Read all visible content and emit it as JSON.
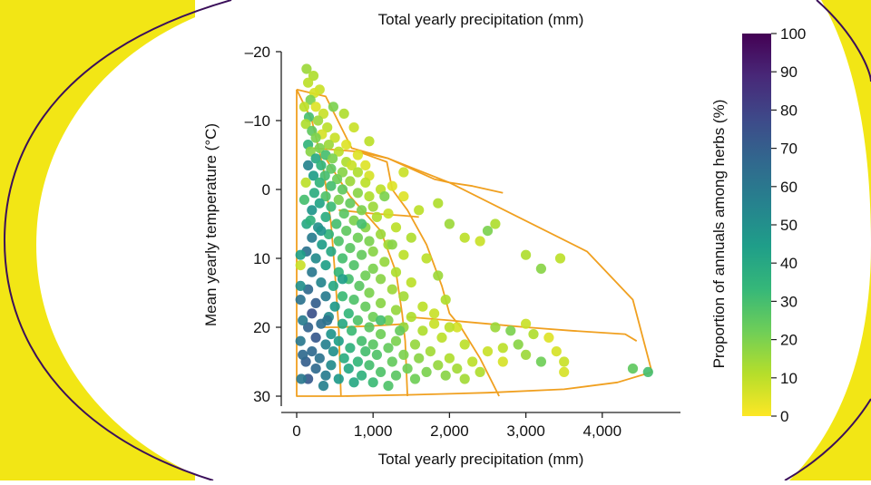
{
  "colors": {
    "decor_yellow": "#f2e615",
    "decor_arc": "#3b0f5a",
    "biome_outline": "#f0a020",
    "axis": "#222222",
    "viridis_stops": [
      "#fde725",
      "#b5de2b",
      "#6ece58",
      "#35b779",
      "#1f9e89",
      "#26828e",
      "#31688e",
      "#3e4989",
      "#482878",
      "#440154"
    ]
  },
  "chart_data": {
    "type": "scatter",
    "title": "Total yearly precipitation (mm)",
    "xlabel": "Total yearly precipitation (mm)",
    "ylabel": "Mean yearly temperature (°C)",
    "xlim": [
      -300,
      5000
    ],
    "ylim": [
      -22,
      31
    ],
    "y_inverted": true,
    "x_ticks": [
      0,
      1000,
      2000,
      3000,
      4000
    ],
    "x_tick_labels": [
      "0",
      "1,000",
      "2,000",
      "3,000",
      "4,000"
    ],
    "y_ticks": [
      -20,
      -10,
      0,
      10,
      20,
      30
    ],
    "y_tick_labels": [
      "–20",
      "–10",
      "0",
      "10",
      "20",
      "30"
    ],
    "colorbar": {
      "label": "Proportion of annuals among herbs (%)",
      "range": [
        0,
        100
      ],
      "ticks": [
        0,
        10,
        20,
        30,
        40,
        50,
        60,
        70,
        80,
        90,
        100
      ],
      "tick_labels": [
        "0",
        "10",
        "20",
        "30",
        "40",
        "50",
        "60",
        "70",
        "80",
        "90",
        "100"
      ]
    },
    "biome_boundaries": [
      [
        [
          0,
          -14.5
        ],
        [
          380,
          -13.5
        ],
        [
          720,
          -6
        ],
        [
          1200,
          -4.5
        ],
        [
          2000,
          -1
        ],
        [
          2900,
          4
        ],
        [
          3800,
          9
        ],
        [
          4400,
          16
        ],
        [
          4650,
          26.5
        ],
        [
          4200,
          28
        ],
        [
          3500,
          29
        ],
        [
          2500,
          29.5
        ],
        [
          1500,
          29.8
        ],
        [
          600,
          30
        ],
        [
          0,
          30
        ],
        [
          0,
          -14.5
        ]
      ],
      [
        [
          0,
          -14.5
        ],
        [
          200,
          -10
        ],
        [
          350,
          -3
        ],
        [
          450,
          5
        ],
        [
          500,
          12
        ],
        [
          550,
          20
        ],
        [
          580,
          30
        ]
      ],
      [
        [
          220,
          -6
        ],
        [
          800,
          -5.5
        ],
        [
          1200,
          -4.5
        ],
        [
          1800,
          -1.5
        ],
        [
          2000,
          -1
        ],
        [
          2300,
          -0.5
        ],
        [
          2700,
          0.5
        ]
      ],
      [
        [
          380,
          -4.5
        ],
        [
          700,
          1
        ],
        [
          1100,
          6
        ],
        [
          1300,
          12
        ],
        [
          1380,
          18
        ],
        [
          1420,
          22
        ],
        [
          1450,
          30
        ]
      ],
      [
        [
          800,
          -5.5
        ],
        [
          1180,
          -4
        ],
        [
          1250,
          0
        ],
        [
          1450,
          3
        ],
        [
          1700,
          8
        ],
        [
          1900,
          14
        ],
        [
          2000,
          18
        ],
        [
          2150,
          20
        ],
        [
          2400,
          24.5
        ],
        [
          2650,
          30
        ]
      ],
      [
        [
          550,
          3
        ],
        [
          1000,
          3.5
        ],
        [
          1400,
          3.8
        ],
        [
          1600,
          4
        ]
      ],
      [
        [
          1450,
          18.5
        ],
        [
          2000,
          19
        ],
        [
          2500,
          19.5
        ],
        [
          3000,
          20
        ],
        [
          3600,
          20.5
        ],
        [
          4300,
          21
        ],
        [
          4450,
          22
        ]
      ],
      [
        [
          350,
          20
        ],
        [
          550,
          20
        ],
        [
          1000,
          19.8
        ],
        [
          1450,
          19.5
        ]
      ]
    ],
    "points_note_unused": "",
    "points": [
      [
        130,
        -17.5,
        15
      ],
      [
        220,
        -16.5,
        12
      ],
      [
        150,
        -15.5,
        10
      ],
      [
        300,
        -14.5,
        8
      ],
      [
        230,
        -14,
        6
      ],
      [
        180,
        -13,
        20
      ],
      [
        100,
        -12,
        10
      ],
      [
        250,
        -12,
        5
      ],
      [
        350,
        -11,
        8
      ],
      [
        160,
        -10.5,
        30
      ],
      [
        280,
        -10,
        15
      ],
      [
        120,
        -9.5,
        12
      ],
      [
        400,
        -9,
        10
      ],
      [
        200,
        -8.5,
        25
      ],
      [
        330,
        -8,
        6
      ],
      [
        250,
        -7.5,
        20
      ],
      [
        500,
        -7.5,
        8
      ],
      [
        150,
        -6.5,
        35
      ],
      [
        420,
        -6.5,
        15
      ],
      [
        650,
        -6.5,
        5
      ],
      [
        300,
        -6,
        20
      ],
      [
        180,
        -5.5,
        18
      ],
      [
        550,
        -5.5,
        10
      ],
      [
        380,
        -5,
        30
      ],
      [
        800,
        -5,
        5
      ],
      [
        250,
        -4.5,
        40
      ],
      [
        470,
        -4.5,
        20
      ],
      [
        650,
        -4,
        12
      ],
      [
        150,
        -3.5,
        55
      ],
      [
        320,
        -3.5,
        35
      ],
      [
        720,
        -3.5,
        8
      ],
      [
        900,
        -3.5,
        5
      ],
      [
        450,
        -3,
        25
      ],
      [
        600,
        -2.5,
        18
      ],
      [
        800,
        -2.5,
        12
      ],
      [
        220,
        -2,
        45
      ],
      [
        370,
        -2,
        30
      ],
      [
        950,
        -2,
        6
      ],
      [
        530,
        -1.5,
        22
      ],
      [
        700,
        -1.2,
        15
      ],
      [
        120,
        -1,
        10
      ],
      [
        300,
        -1,
        35
      ],
      [
        900,
        -1,
        10
      ],
      [
        1250,
        -0.5,
        5
      ],
      [
        450,
        -0.5,
        30
      ],
      [
        1100,
        0,
        10
      ],
      [
        600,
        0,
        25
      ],
      [
        230,
        0.5,
        38
      ],
      [
        800,
        0.5,
        18
      ],
      [
        380,
        1,
        28
      ],
      [
        950,
        1,
        12
      ],
      [
        1400,
        1,
        5
      ],
      [
        100,
        1.5,
        30
      ],
      [
        550,
        1.5,
        20
      ],
      [
        700,
        2,
        24
      ],
      [
        300,
        2,
        42
      ],
      [
        1000,
        2.5,
        15
      ],
      [
        450,
        2.5,
        32
      ],
      [
        850,
        3,
        20
      ],
      [
        200,
        3,
        48
      ],
      [
        1200,
        3.5,
        8
      ],
      [
        620,
        3.5,
        26
      ],
      [
        380,
        4,
        38
      ],
      [
        1050,
        4,
        12
      ],
      [
        750,
        4.5,
        20
      ],
      [
        130,
        5,
        40
      ],
      [
        520,
        5,
        30
      ],
      [
        900,
        5.5,
        18
      ],
      [
        280,
        5.5,
        50
      ],
      [
        1300,
        5.5,
        10
      ],
      [
        650,
        6,
        25
      ],
      [
        1100,
        6.5,
        15
      ],
      [
        420,
        6.5,
        35
      ],
      [
        800,
        7,
        22
      ],
      [
        200,
        7,
        58
      ],
      [
        1500,
        7,
        12
      ],
      [
        950,
        7.5,
        20
      ],
      [
        550,
        7.5,
        28
      ],
      [
        330,
        8,
        45
      ],
      [
        1200,
        8,
        14
      ],
      [
        700,
        8.5,
        26
      ],
      [
        130,
        9,
        62
      ],
      [
        1000,
        9,
        18
      ],
      [
        450,
        9,
        40
      ],
      [
        1400,
        9.5,
        10
      ],
      [
        850,
        9.5,
        24
      ],
      [
        600,
        10,
        30
      ],
      [
        250,
        10,
        52
      ],
      [
        1150,
        10.5,
        16
      ],
      [
        750,
        11,
        28
      ],
      [
        380,
        11,
        44
      ],
      [
        1000,
        11.5,
        20
      ],
      [
        50,
        11,
        8
      ],
      [
        550,
        12,
        34
      ],
      [
        1300,
        12,
        12
      ],
      [
        200,
        12,
        60
      ],
      [
        900,
        12.5,
        22
      ],
      [
        680,
        13,
        30
      ],
      [
        1100,
        13,
        18
      ],
      [
        320,
        13.5,
        54
      ],
      [
        1500,
        13.5,
        10
      ],
      [
        820,
        14,
        26
      ],
      [
        480,
        14,
        40
      ],
      [
        1250,
        14.5,
        15
      ],
      [
        150,
        14.5,
        66
      ],
      [
        950,
        15,
        20
      ],
      [
        600,
        15.5,
        32
      ],
      [
        380,
        15.5,
        58
      ],
      [
        1400,
        15.5,
        14
      ],
      [
        50,
        16,
        62
      ],
      [
        750,
        16,
        28
      ],
      [
        1100,
        16.5,
        18
      ],
      [
        250,
        16.5,
        70
      ],
      [
        900,
        17,
        24
      ],
      [
        500,
        17,
        46
      ],
      [
        1650,
        17,
        10
      ],
      [
        1300,
        17.5,
        16
      ],
      [
        680,
        18,
        34
      ],
      [
        200,
        18,
        75
      ],
      [
        1000,
        18.5,
        22
      ],
      [
        420,
        18.5,
        52
      ],
      [
        1500,
        18.5,
        12
      ],
      [
        800,
        19,
        28
      ],
      [
        1200,
        19,
        20
      ],
      [
        320,
        19.5,
        64
      ],
      [
        600,
        19.5,
        40
      ],
      [
        1800,
        19.5,
        8
      ],
      [
        950,
        20,
        26
      ],
      [
        150,
        20,
        68
      ],
      [
        1400,
        20,
        16
      ],
      [
        720,
        20.5,
        32
      ],
      [
        450,
        21,
        48
      ],
      [
        1100,
        21,
        22
      ],
      [
        2100,
        20,
        6
      ],
      [
        1650,
        20.5,
        12
      ],
      [
        250,
        21.5,
        72
      ],
      [
        850,
        22,
        30
      ],
      [
        1300,
        22,
        20
      ],
      [
        550,
        22,
        44
      ],
      [
        1900,
        21.5,
        10
      ],
      [
        1000,
        22.5,
        26
      ],
      [
        50,
        22,
        60
      ],
      [
        380,
        22.5,
        56
      ],
      [
        1550,
        22.5,
        16
      ],
      [
        700,
        23,
        36
      ],
      [
        2200,
        22.5,
        10
      ],
      [
        1200,
        23,
        24
      ],
      [
        200,
        23.5,
        66
      ],
      [
        900,
        23.5,
        30
      ],
      [
        1750,
        23.5,
        14
      ],
      [
        480,
        23.5,
        50
      ],
      [
        1400,
        24,
        20
      ],
      [
        2500,
        23.5,
        8
      ],
      [
        1050,
        24,
        28
      ],
      [
        620,
        24.5,
        38
      ],
      [
        300,
        24.5,
        62
      ],
      [
        2000,
        24.5,
        12
      ],
      [
        1600,
        24.5,
        18
      ],
      [
        800,
        25,
        34
      ],
      [
        1250,
        25,
        24
      ],
      [
        120,
        25,
        70
      ],
      [
        2300,
        25,
        10
      ],
      [
        450,
        25.5,
        52
      ],
      [
        1850,
        25.5,
        16
      ],
      [
        950,
        25.5,
        30
      ],
      [
        2700,
        25,
        6
      ],
      [
        1450,
        26,
        22
      ],
      [
        680,
        26,
        40
      ],
      [
        250,
        26,
        66
      ],
      [
        2100,
        26,
        14
      ],
      [
        1100,
        26.5,
        28
      ],
      [
        1700,
        26.5,
        20
      ],
      [
        380,
        27,
        58
      ],
      [
        850,
        27,
        36
      ],
      [
        2400,
        26.5,
        12
      ],
      [
        1300,
        27,
        26
      ],
      [
        550,
        27.5,
        46
      ],
      [
        1950,
        27,
        18
      ],
      [
        150,
        27.5,
        72
      ],
      [
        1000,
        28,
        32
      ],
      [
        750,
        28,
        40
      ],
      [
        1550,
        27.5,
        22
      ],
      [
        2200,
        27.5,
        14
      ],
      [
        350,
        28.5,
        56
      ],
      [
        1200,
        28.5,
        28
      ],
      [
        2000,
        20,
        10
      ],
      [
        2600,
        20,
        15
      ],
      [
        3000,
        19.5,
        8
      ],
      [
        3100,
        21,
        12
      ],
      [
        2800,
        20.5,
        20
      ],
      [
        3400,
        23.5,
        6
      ],
      [
        3500,
        25,
        8
      ],
      [
        3500,
        26.5,
        6
      ],
      [
        3200,
        25,
        22
      ],
      [
        2900,
        22.5,
        18
      ],
      [
        3000,
        24,
        15
      ],
      [
        2700,
        23,
        10
      ],
      [
        3300,
        21.5,
        5
      ],
      [
        4400,
        26,
        25
      ],
      [
        4600,
        26.5,
        30
      ],
      [
        2200,
        7,
        10
      ],
      [
        2400,
        7.5,
        8
      ],
      [
        2500,
        6,
        20
      ],
      [
        2600,
        5,
        12
      ],
      [
        3000,
        9.5,
        12
      ],
      [
        3200,
        11.5,
        18
      ],
      [
        3450,
        10,
        10
      ],
      [
        2000,
        5,
        15
      ],
      [
        1600,
        3,
        10
      ],
      [
        1850,
        2,
        12
      ],
      [
        950,
        -7,
        10
      ],
      [
        1400,
        -2.5,
        8
      ],
      [
        1150,
        1,
        20
      ],
      [
        750,
        -9,
        8
      ],
      [
        620,
        -11,
        12
      ],
      [
        480,
        -12,
        20
      ],
      [
        850,
        5,
        30
      ],
      [
        1250,
        8,
        18
      ],
      [
        1700,
        10,
        10
      ],
      [
        1850,
        12.5,
        15
      ],
      [
        1950,
        16,
        12
      ],
      [
        1800,
        18,
        8
      ],
      [
        1350,
        20.5,
        24
      ],
      [
        1100,
        19,
        30
      ],
      [
        400,
        19,
        62
      ],
      [
        600,
        13,
        44
      ],
      [
        320,
        6,
        48
      ],
      [
        180,
        4.5,
        36
      ],
      [
        50,
        9.5,
        44
      ],
      [
        50,
        14,
        50
      ],
      [
        80,
        19,
        58
      ],
      [
        80,
        24,
        66
      ],
      [
        60,
        27.5,
        60
      ]
    ]
  }
}
